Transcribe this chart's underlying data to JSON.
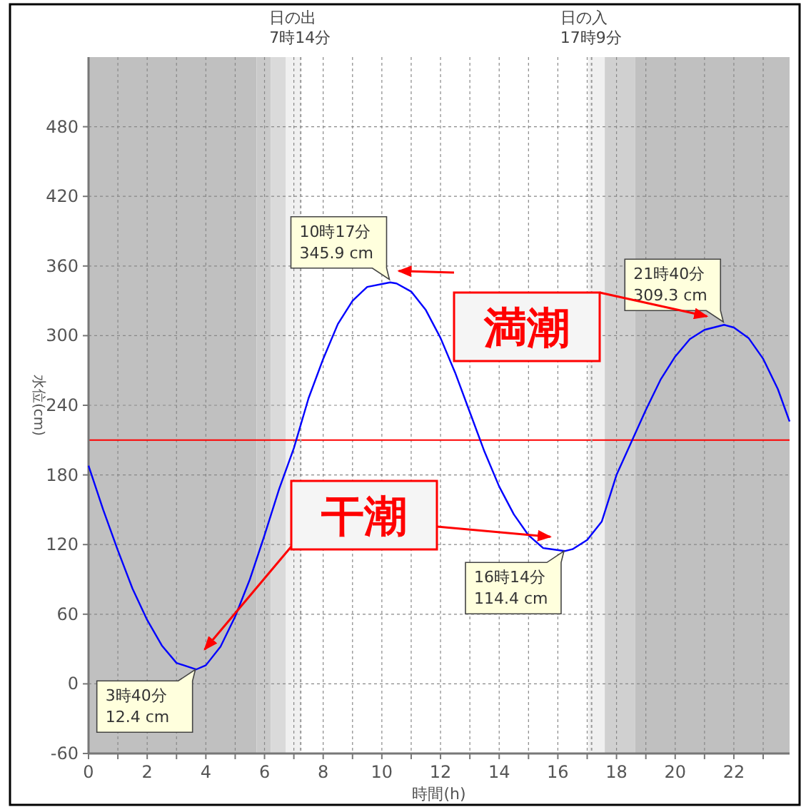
{
  "chart_data": {
    "type": "line",
    "xlabel": "時間(h)",
    "ylabel": "水位(cm)",
    "xlim": [
      0,
      23.9
    ],
    "ylim": [
      -60,
      540
    ],
    "xticks": [
      0,
      {
        "value": 1,
        "label": null
      },
      2,
      {
        "value": 3,
        "label": null
      },
      4,
      {
        "value": 5,
        "label": null
      },
      6,
      {
        "value": 7,
        "label": null
      },
      8,
      {
        "value": 9,
        "label": null
      },
      10,
      {
        "value": 11,
        "label": null
      },
      12,
      {
        "value": 13,
        "label": null
      },
      14,
      {
        "value": 15,
        "label": null
      },
      16,
      {
        "value": 17,
        "label": null
      },
      18,
      {
        "value": 19,
        "label": null
      },
      20,
      {
        "value": 21,
        "label": null
      },
      22,
      {
        "value": 23,
        "label": null
      }
    ],
    "yticks": [
      -60,
      0,
      60,
      120,
      180,
      240,
      300,
      360,
      420,
      480
    ],
    "grid": true,
    "line_style": "solid",
    "marker": "none",
    "series": [
      {
        "color": "#0000ff",
        "x": [
          0,
          0.5,
          1,
          1.5,
          2,
          2.5,
          3,
          3.667,
          4,
          4.5,
          5,
          5.5,
          6,
          6.5,
          7,
          7.5,
          8,
          8.5,
          9,
          9.5,
          10.283,
          10.5,
          11,
          11.5,
          12,
          12.5,
          13,
          13.5,
          14,
          14.5,
          15,
          15.5,
          16.233,
          16.5,
          17,
          17.5,
          18,
          18.5,
          19,
          19.5,
          20,
          20.5,
          21,
          21.667,
          22,
          22.5,
          23,
          23.5,
          23.9
        ],
        "values": [
          188,
          150,
          115,
          82,
          55,
          33,
          18,
          12.4,
          16,
          32,
          58,
          90,
          128,
          168,
          203,
          246,
          280,
          310,
          330,
          342,
          345.9,
          345,
          338,
          322,
          298,
          268,
          234,
          200,
          170,
          146,
          128,
          117,
          114.4,
          116,
          124,
          140,
          180,
          208,
          236,
          262,
          282,
          297,
          305,
          309.3,
          307,
          298,
          280,
          254,
          226
        ]
      }
    ],
    "bands": [
      {
        "axis": "x",
        "from": 0,
        "to": 5.73,
        "color": "#c0c0c0"
      },
      {
        "axis": "x",
        "from": 5.73,
        "to": 6.21,
        "color": "#cacaca"
      },
      {
        "axis": "x",
        "from": 6.21,
        "to": 6.73,
        "color": "#dadada"
      },
      {
        "axis": "x",
        "from": 6.73,
        "to": 7.24,
        "color": "#f0f0f0"
      },
      {
        "axis": "x",
        "from": 17.03,
        "to": 17.6,
        "color": "#f0f0f0"
      },
      {
        "axis": "x",
        "from": 17.6,
        "to": 18.64,
        "color": "#d0d0d0"
      },
      {
        "axis": "x",
        "from": 18.64,
        "to": 23.9,
        "color": "#c0c0c0"
      }
    ],
    "ref_lines": [
      {
        "axis": "y",
        "value": 210,
        "color": "#ff0000",
        "line_style": "solid"
      },
      {
        "axis": "x",
        "value": 7.233,
        "label": "日の出\n7時14分",
        "color": "#999999",
        "line_style": "dotted"
      },
      {
        "axis": "x",
        "value": 17.15,
        "label": "日の入\n17時9分",
        "color": "#999999",
        "line_style": "dotted"
      }
    ],
    "annotations": [
      {
        "text": "3時40分\n12.4 cm",
        "x": 3.667,
        "y": 12.4
      },
      {
        "text": "10時17分\n345.9 cm",
        "x": 10.283,
        "y": 345.9
      },
      {
        "text": "16時14分\n114.4 cm",
        "x": 16.233,
        "y": 114.4
      },
      {
        "text": "21時40分\n309.3 cm",
        "x": 21.667,
        "y": 309.3
      },
      "満潮",
      "干潮"
    ]
  }
}
